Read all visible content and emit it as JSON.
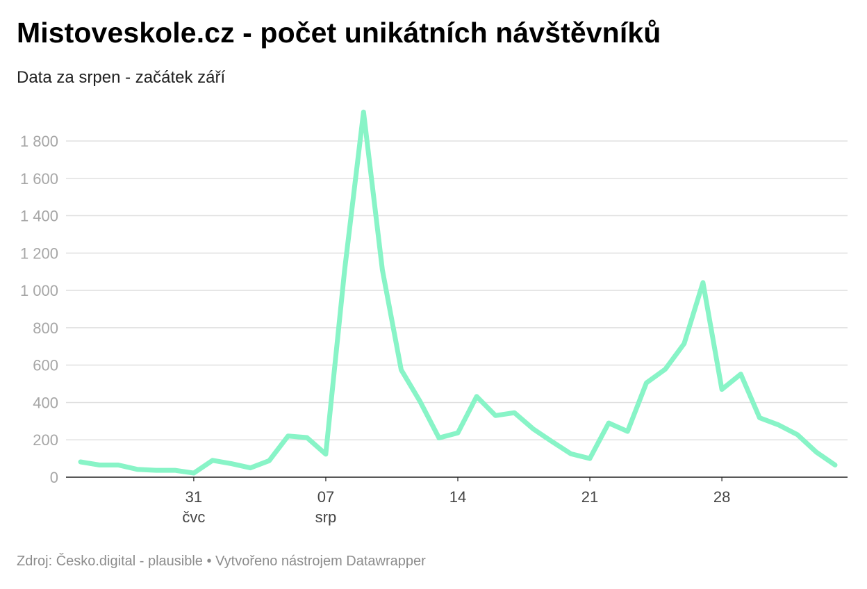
{
  "header": {
    "title": "Mistoveskole.cz - počet unikátních návštěvníků",
    "subtitle": "Data za srpen - začátek září"
  },
  "footer": {
    "source_prefix": "Zdroj: ",
    "source": "Česko.digital - plausible",
    "separator": " • ",
    "credit": "Vytvořeno nástrojem Datawrapper"
  },
  "colors": {
    "line": "#88f4c7",
    "grid": "#e0e0e0",
    "axis": "#222222"
  },
  "chart_data": {
    "type": "line",
    "title": "Mistoveskole.cz - počet unikátních návštěvníků",
    "subtitle": "Data za srpen - začátek září",
    "xlabel": "",
    "ylabel": "",
    "ylim": [
      0,
      1800
    ],
    "yticks": [
      0,
      200,
      400,
      600,
      800,
      1000,
      1200,
      1400,
      1600,
      1800
    ],
    "ytick_labels": [
      "0",
      "200",
      "400",
      "600",
      "800",
      "1 000",
      "1 200",
      "1 400",
      "1 600",
      "1 800"
    ],
    "grid": true,
    "x_ticks": [
      {
        "day_index": 6,
        "label": "31",
        "sublabel": "čvc"
      },
      {
        "day_index": 13,
        "label": "07",
        "sublabel": "srp"
      },
      {
        "day_index": 20,
        "label": "14",
        "sublabel": ""
      },
      {
        "day_index": 27,
        "label": "21",
        "sublabel": ""
      },
      {
        "day_index": 34,
        "label": "28",
        "sublabel": ""
      }
    ],
    "series": [
      {
        "x": [
          "2020-07-25",
          "2020-07-26",
          "2020-07-27",
          "2020-07-28",
          "2020-07-29",
          "2020-07-30",
          "2020-07-31",
          "2020-08-01",
          "2020-08-02",
          "2020-08-03",
          "2020-08-04",
          "2020-08-05",
          "2020-08-06",
          "2020-08-07",
          "2020-08-08",
          "2020-08-09",
          "2020-08-10",
          "2020-08-11",
          "2020-08-12",
          "2020-08-13",
          "2020-08-14",
          "2020-08-15",
          "2020-08-16",
          "2020-08-17",
          "2020-08-18",
          "2020-08-19",
          "2020-08-20",
          "2020-08-21",
          "2020-08-22",
          "2020-08-23",
          "2020-08-24",
          "2020-08-25",
          "2020-08-26",
          "2020-08-27",
          "2020-08-28",
          "2020-08-29",
          "2020-08-30",
          "2020-08-31",
          "2020-09-01",
          "2020-09-02",
          "2020-09-03"
        ],
        "values": [
          82,
          65,
          65,
          42,
          37,
          37,
          22,
          90,
          72,
          50,
          88,
          220,
          212,
          123,
          1110,
          1955,
          1110,
          575,
          405,
          210,
          237,
          432,
          330,
          345,
          258,
          190,
          125,
          100,
          290,
          245,
          505,
          578,
          715,
          1042,
          470,
          552,
          318,
          280,
          228,
          135,
          65
        ]
      }
    ]
  }
}
